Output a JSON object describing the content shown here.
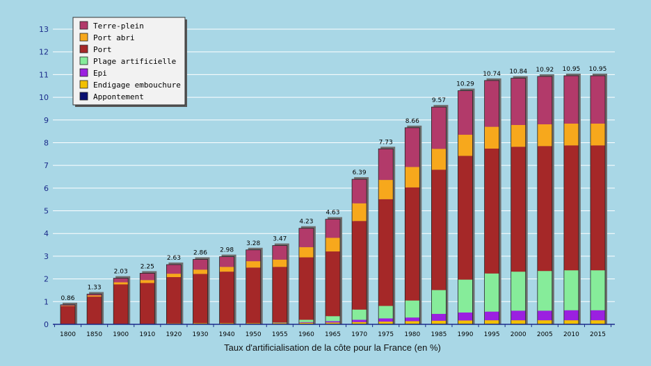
{
  "chart_data": {
    "type": "bar",
    "stacked": true,
    "xlabel": "Taux d'artificialisation de la côte pour la France (en %)",
    "ylabel": "",
    "ylim": [
      0,
      13
    ],
    "yticks": [
      0,
      1,
      2,
      3,
      4,
      5,
      6,
      7,
      8,
      9,
      10,
      11,
      12,
      13
    ],
    "grid": true,
    "legend_position": "top-left",
    "categories": [
      "1800",
      "1850",
      "1900",
      "1910",
      "1920",
      "1930",
      "1940",
      "1950",
      "1955",
      "1960",
      "1965",
      "1970",
      "1975",
      "1980",
      "1985",
      "1990",
      "1995",
      "2000",
      "2005",
      "2010",
      "2015"
    ],
    "totals": [
      0.86,
      1.33,
      2.03,
      2.25,
      2.63,
      2.86,
      2.98,
      3.28,
      3.47,
      4.23,
      4.63,
      6.39,
      7.73,
      8.66,
      9.57,
      10.29,
      10.74,
      10.84,
      10.92,
      10.95,
      10.95
    ],
    "total_labels": [
      "0.86",
      "1.33",
      "2.03",
      "2.25",
      "2.63",
      "2.86",
      "2.98",
      "3.28",
      "3.47",
      "4.23",
      "4.63",
      "6.39",
      "7.73",
      "8.66",
      "9.57",
      "10.29",
      "10.74",
      "10.84",
      "10.92",
      "10.95",
      "10.95"
    ],
    "series": [
      {
        "name": "Appontement",
        "color": "#0a1070",
        "values": [
          0,
          0,
          0,
          0,
          0.02,
          0.02,
          0.02,
          0.02,
          0.02,
          0.02,
          0.02,
          0.02,
          0.02,
          0.02,
          0.02,
          0.02,
          0.02,
          0.02,
          0.02,
          0.02,
          0.02
        ]
      },
      {
        "name": "Endigage embouchure",
        "color": "#f2c000",
        "values": [
          0,
          0,
          0,
          0,
          0.02,
          0.03,
          0.03,
          0.03,
          0.04,
          0.05,
          0.06,
          0.08,
          0.1,
          0.12,
          0.14,
          0.15,
          0.16,
          0.16,
          0.16,
          0.16,
          0.16
        ]
      },
      {
        "name": "Epi",
        "color": "#9b20e0",
        "values": [
          0,
          0,
          0,
          0,
          0,
          0,
          0,
          0,
          0.01,
          0.03,
          0.06,
          0.1,
          0.14,
          0.16,
          0.3,
          0.35,
          0.38,
          0.42,
          0.42,
          0.44,
          0.44
        ]
      },
      {
        "name": "Plage artificielle",
        "color": "#86ec9a",
        "values": [
          0,
          0,
          0,
          0,
          0,
          0,
          0,
          0,
          0.01,
          0.1,
          0.22,
          0.45,
          0.55,
          0.75,
          1.05,
          1.45,
          1.68,
          1.72,
          1.75,
          1.76,
          1.76
        ]
      },
      {
        "name": "Port",
        "color": "#a52828",
        "values": [
          0.8,
          1.22,
          1.76,
          1.82,
          2.04,
          2.17,
          2.27,
          2.45,
          2.45,
          2.75,
          2.85,
          3.9,
          4.7,
          4.98,
          5.3,
          5.45,
          5.5,
          5.5,
          5.5,
          5.5,
          5.5
        ]
      },
      {
        "name": "Port abri",
        "color": "#f7a81c",
        "values": [
          0.02,
          0.05,
          0.09,
          0.13,
          0.15,
          0.19,
          0.21,
          0.28,
          0.32,
          0.45,
          0.6,
          0.78,
          0.85,
          0.9,
          0.92,
          0.93,
          0.96,
          0.96,
          0.96,
          0.96,
          0.96
        ]
      },
      {
        "name": "Terre-plein",
        "color": "#b23a6a",
        "values": [
          0.04,
          0.06,
          0.18,
          0.3,
          0.4,
          0.45,
          0.45,
          0.5,
          0.62,
          0.83,
          0.82,
          1.06,
          1.37,
          1.73,
          1.84,
          1.94,
          2.04,
          2.06,
          2.11,
          2.11,
          2.11
        ]
      }
    ],
    "legend_order": [
      "Terre-plein",
      "Port abri",
      "Port",
      "Plage artificielle",
      "Epi",
      "Endigage embouchure",
      "Appontement"
    ]
  },
  "colors": {
    "background": "#a9d7e6",
    "gridline": "#ffffff",
    "axis": "#1a2a8a",
    "bar_shadow": "#6e6e6e",
    "bar_outline": "#222222"
  }
}
